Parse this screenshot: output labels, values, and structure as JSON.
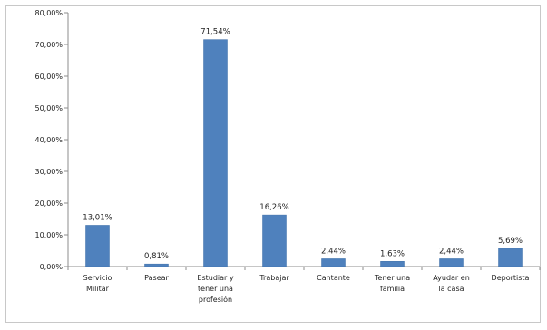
{
  "chart_data": {
    "type": "bar",
    "categories": [
      [
        "Servicio",
        "Militar"
      ],
      [
        "Pasear"
      ],
      [
        "Estudiar y",
        "tener una",
        "profesión"
      ],
      [
        "Trabajar"
      ],
      [
        "Cantante"
      ],
      [
        "Tener una",
        "familia"
      ],
      [
        "Ayudar en",
        "la casa"
      ],
      [
        "Deportista"
      ]
    ],
    "values": [
      13.01,
      0.81,
      71.54,
      16.26,
      2.44,
      1.63,
      2.44,
      5.69
    ],
    "data_labels": [
      "13,01%",
      "0,81%",
      "71,54%",
      "16,26%",
      "2,44%",
      "1,63%",
      "2,44%",
      "5,69%"
    ],
    "y_ticks": [
      "0,00%",
      "10,00%",
      "20,00%",
      "30,00%",
      "40,00%",
      "50,00%",
      "60,00%",
      "70,00%",
      "80,00%"
    ],
    "ylim": [
      0,
      80
    ],
    "grid": false,
    "legend": "none",
    "title": "",
    "xlabel": "",
    "ylabel": "",
    "colors": {
      "bar": "#4f81bd",
      "bar_edge": "#3d6fa8",
      "axis": "#8c8c8c"
    }
  }
}
